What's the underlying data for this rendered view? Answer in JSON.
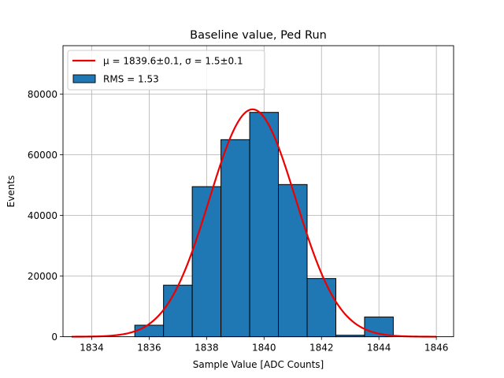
{
  "chart_data": {
    "type": "bar",
    "title": "Baseline value, Ped Run",
    "xlabel": "Sample Value [ADC Counts]",
    "ylabel": "Events",
    "xlim": [
      1833,
      1846.6
    ],
    "ylim": [
      0,
      96000
    ],
    "xticks": [
      1834,
      1836,
      1838,
      1840,
      1842,
      1844,
      1846
    ],
    "yticks": [
      0,
      20000,
      40000,
      60000,
      80000
    ],
    "grid": true,
    "legend_position": "top-left",
    "histogram": {
      "name": "RMS = 1.53",
      "color": "#1f77b4",
      "edgecolor": "#000000",
      "bins": [
        {
          "x0": 1835.5,
          "x1": 1836.5,
          "count": 3800
        },
        {
          "x0": 1836.5,
          "x1": 1837.5,
          "count": 17000
        },
        {
          "x0": 1837.5,
          "x1": 1838.5,
          "count": 49500
        },
        {
          "x0": 1838.5,
          "x1": 1839.5,
          "count": 65000
        },
        {
          "x0": 1839.5,
          "x1": 1840.5,
          "count": 74000
        },
        {
          "x0": 1840.5,
          "x1": 1841.5,
          "count": 50200
        },
        {
          "x0": 1841.5,
          "x1": 1842.5,
          "count": 19200
        },
        {
          "x0": 1842.5,
          "x1": 1843.5,
          "count": 500
        },
        {
          "x0": 1843.5,
          "x1": 1844.5,
          "count": 6500
        }
      ]
    },
    "fit": {
      "name": "μ = 1839.6±0.1, σ = 1.5±0.1",
      "color": "#ee0000",
      "mu": 1839.6,
      "sigma": 1.5,
      "amplitude": 75000,
      "x_range": [
        1833.3,
        1846
      ]
    }
  }
}
